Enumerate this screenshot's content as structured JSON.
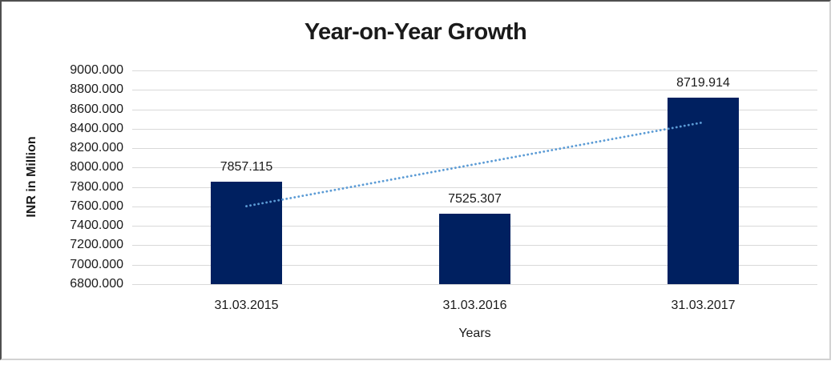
{
  "chart_data": {
    "type": "bar",
    "title": "Year-on-Year Growth",
    "categories": [
      "31.03.2015",
      "31.03.2016",
      "31.03.2017"
    ],
    "values": [
      7857.115,
      7525.307,
      8719.914
    ],
    "data_labels": [
      "7857.115",
      "7525.307",
      "8719.914"
    ],
    "xlabel": "Years",
    "ylabel": "INR in Million",
    "ylim": [
      6800,
      9000
    ],
    "ytick_step": 200,
    "ytick_labels": [
      "9000.000",
      "8800.000",
      "8600.000",
      "8400.000",
      "8200.000",
      "8000.000",
      "7800.000",
      "7600.000",
      "7400.000",
      "7200.000",
      "7000.000",
      "6800.000"
    ],
    "grid": true,
    "legend_position": "none",
    "trendline": {
      "kind": "linear",
      "style": "dotted"
    },
    "colors": {
      "bar": "#002060",
      "trendline": "#5b9bd5",
      "gridline": "#d9d9d9",
      "text": "#1a1a1a"
    }
  }
}
